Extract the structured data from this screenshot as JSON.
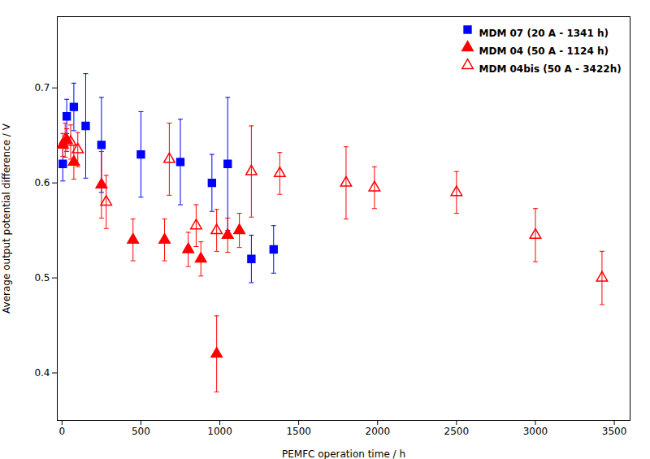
{
  "chart_data": {
    "type": "scatter",
    "xlabel": "PEMFC operation time / h",
    "ylabel": "Average output potential difference / V",
    "series": [
      {
        "name": "MDM 07 (20 A - 1341 h)",
        "color": "#0000FF",
        "marker": "square",
        "x": [
          5,
          30,
          75,
          150,
          250,
          500,
          750,
          950,
          1050,
          1200,
          1341
        ],
        "values": [
          0.62,
          0.67,
          0.68,
          0.66,
          0.64,
          0.63,
          0.622,
          0.6,
          0.62,
          0.52,
          0.53
        ],
        "yerr": [
          0.018,
          0.018,
          0.025,
          0.055,
          0.05,
          0.045,
          0.045,
          0.03,
          0.07,
          0.025,
          0.025
        ]
      },
      {
        "name": "MDM 04 (50 A - 1124 h)",
        "color": "#FF0000",
        "marker": "triangle",
        "x": [
          5,
          30,
          75,
          250,
          450,
          650,
          800,
          880,
          980,
          1050,
          1124
        ],
        "values": [
          0.64,
          0.645,
          0.622,
          0.598,
          0.54,
          0.54,
          0.53,
          0.52,
          0.42,
          0.545,
          0.55
        ],
        "yerr": [
          0.012,
          0.012,
          0.018,
          0.035,
          0.022,
          0.022,
          0.018,
          0.018,
          0.04,
          0.018,
          0.018
        ]
      },
      {
        "name": "MDM 04bis (50 A - 3422h)",
        "color": "#FF0000",
        "marker": "triangle-open",
        "x": [
          20,
          55,
          100,
          280,
          680,
          850,
          980,
          1200,
          1380,
          1800,
          1980,
          2500,
          3000,
          3422
        ],
        "values": [
          0.645,
          0.643,
          0.635,
          0.58,
          0.625,
          0.555,
          0.55,
          0.612,
          0.61,
          0.6,
          0.595,
          0.59,
          0.545,
          0.5
        ],
        "yerr": [
          0.018,
          0.018,
          0.018,
          0.028,
          0.038,
          0.022,
          0.022,
          0.048,
          0.022,
          0.038,
          0.022,
          0.022,
          0.028,
          0.028
        ]
      }
    ],
    "xlim": [
      -30,
      3600
    ],
    "ylim": [
      0.35,
      0.775
    ],
    "xticks": [
      0,
      500,
      1000,
      1500,
      2000,
      2500,
      3000,
      3500
    ],
    "yticks": [
      0.4,
      0.5,
      0.6,
      0.7
    ],
    "legend": "upper right"
  }
}
